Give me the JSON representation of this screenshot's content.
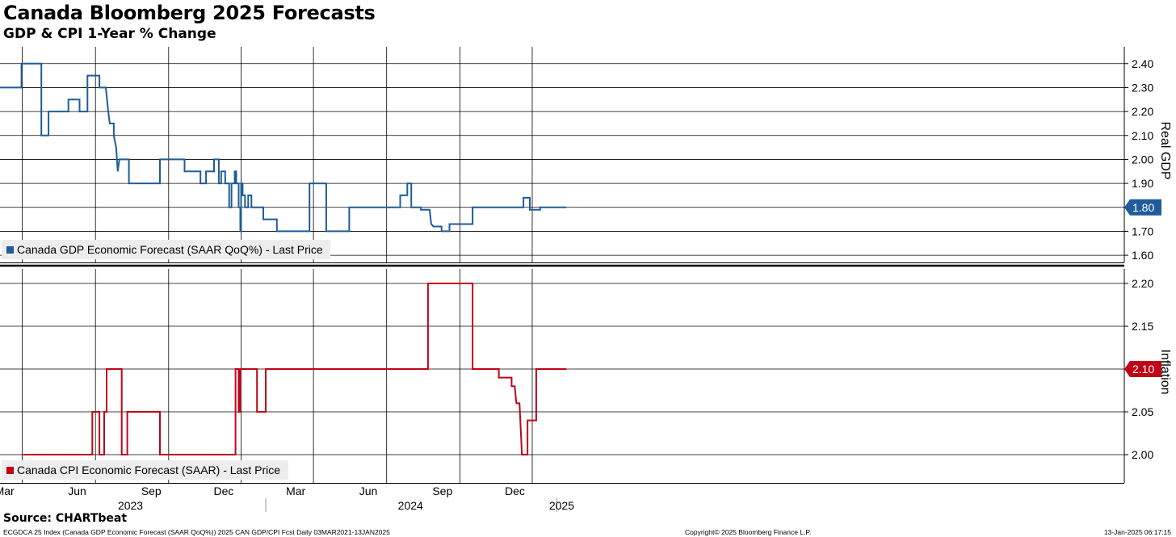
{
  "header": {
    "title": "Canada Bloomberg 2025 Forecasts",
    "subtitle": "GDP & CPI 1-Year % Change"
  },
  "footer": {
    "source": "Source: CHARTbeat",
    "left_note": "ECGDCA 25 Index (Canada GDP Economic Forecast (SAAR QoQ%)) 2025 CAN GDP/CPI Fcst  Daily 03MAR2021-13JAN2025",
    "center_note": "Copyright© 2025 Bloomberg Finance L.P.",
    "right_note": "13-Jan-2025 06:17:15"
  },
  "colors": {
    "gdp": "#1f5c99",
    "cpi": "#c00418",
    "grid": "#000000",
    "legend_bg": "#ededed"
  },
  "x_axis": {
    "months": [
      {
        "label": "Mar",
        "date": "2023-03-01"
      },
      {
        "label": "Jun",
        "date": "2023-06-01"
      },
      {
        "label": "Sep",
        "date": "2023-09-01"
      },
      {
        "label": "Dec",
        "date": "2023-12-01"
      },
      {
        "label": "Mar",
        "date": "2024-03-01"
      },
      {
        "label": "Jun",
        "date": "2024-06-01"
      },
      {
        "label": "Sep",
        "date": "2024-09-01"
      },
      {
        "label": "Dec",
        "date": "2024-12-01"
      }
    ],
    "years": [
      {
        "label": "2023",
        "date": "2023-07-15"
      },
      {
        "label": "2024",
        "date": "2024-07-01"
      },
      {
        "label": "2025",
        "date": "2025-01-07"
      }
    ],
    "year_separators": [
      "2024-01-01",
      "2025-01-01"
    ]
  },
  "chart_data": [
    {
      "type": "line",
      "name": "Canada GDP Economic Forecast (SAAR QoQ%) - Last Price",
      "legend_text": "Canada GDP Economic Forecast (SAAR QoQ%) - Last Price",
      "ylabel": "Real GDP",
      "ylim": [
        1.57,
        2.47
      ],
      "yticks": [
        "1.60",
        "1.70",
        "1.80",
        "1.90",
        "2.00",
        "2.10",
        "2.20",
        "2.30",
        "2.40"
      ],
      "last_value": "1.80",
      "legend": "bottom-left",
      "grid": true,
      "points": [
        [
          "2023-02-01",
          2.3
        ],
        [
          "2023-02-28",
          2.3
        ],
        [
          "2023-02-28",
          2.4
        ],
        [
          "2023-03-25",
          2.4
        ],
        [
          "2023-03-25",
          2.1
        ],
        [
          "2023-04-03",
          2.1
        ],
        [
          "2023-04-03",
          2.2
        ],
        [
          "2023-04-28",
          2.2
        ],
        [
          "2023-04-28",
          2.25
        ],
        [
          "2023-05-12",
          2.25
        ],
        [
          "2023-05-12",
          2.2
        ],
        [
          "2023-05-22",
          2.2
        ],
        [
          "2023-05-22",
          2.35
        ],
        [
          "2023-06-06",
          2.35
        ],
        [
          "2023-06-06",
          2.3
        ],
        [
          "2023-06-14",
          2.3
        ],
        [
          "2023-06-17",
          2.2
        ],
        [
          "2023-06-19",
          2.15
        ],
        [
          "2023-06-24",
          2.15
        ],
        [
          "2023-06-24",
          2.1
        ],
        [
          "2023-06-27",
          2.05
        ],
        [
          "2023-06-29",
          1.95
        ],
        [
          "2023-07-01",
          2.0
        ],
        [
          "2023-07-13",
          2.0
        ],
        [
          "2023-07-13",
          1.9
        ],
        [
          "2023-08-21",
          1.9
        ],
        [
          "2023-08-21",
          2.0
        ],
        [
          "2023-09-21",
          2.0
        ],
        [
          "2023-09-21",
          1.95
        ],
        [
          "2023-10-11",
          1.95
        ],
        [
          "2023-10-11",
          1.9
        ],
        [
          "2023-10-18",
          1.9
        ],
        [
          "2023-10-18",
          1.95
        ],
        [
          "2023-10-28",
          1.95
        ],
        [
          "2023-10-28",
          2.0
        ],
        [
          "2023-11-03",
          2.0
        ],
        [
          "2023-11-03",
          1.9
        ],
        [
          "2023-11-06",
          1.9
        ],
        [
          "2023-11-06",
          1.95
        ],
        [
          "2023-11-11",
          1.95
        ],
        [
          "2023-11-11",
          1.9
        ],
        [
          "2023-11-16",
          1.9
        ],
        [
          "2023-11-16",
          1.8
        ],
        [
          "2023-11-19",
          1.8
        ],
        [
          "2023-11-19",
          1.9
        ],
        [
          "2023-11-23",
          1.9
        ],
        [
          "2023-11-23",
          1.95
        ],
        [
          "2023-11-25",
          1.95
        ],
        [
          "2023-11-25",
          1.9
        ],
        [
          "2023-11-28",
          1.9
        ],
        [
          "2023-11-28",
          1.8
        ],
        [
          "2023-11-30",
          1.8
        ],
        [
          "2023-11-30",
          1.7
        ],
        [
          "2023-12-01",
          1.7
        ],
        [
          "2023-12-01",
          1.9
        ],
        [
          "2023-12-03",
          1.9
        ],
        [
          "2023-12-03",
          1.85
        ],
        [
          "2023-12-06",
          1.85
        ],
        [
          "2023-12-06",
          1.8
        ],
        [
          "2023-12-10",
          1.8
        ],
        [
          "2023-12-10",
          1.85
        ],
        [
          "2023-12-14",
          1.85
        ],
        [
          "2023-12-14",
          1.8
        ],
        [
          "2023-12-29",
          1.8
        ],
        [
          "2023-12-29",
          1.75
        ],
        [
          "2024-01-15",
          1.75
        ],
        [
          "2024-01-15",
          1.7
        ],
        [
          "2024-02-25",
          1.7
        ],
        [
          "2024-02-25",
          1.9
        ],
        [
          "2024-03-17",
          1.9
        ],
        [
          "2024-03-17",
          1.7
        ],
        [
          "2024-04-15",
          1.7
        ],
        [
          "2024-04-15",
          1.8
        ],
        [
          "2024-06-18",
          1.8
        ],
        [
          "2024-06-18",
          1.85
        ],
        [
          "2024-06-27",
          1.85
        ],
        [
          "2024-06-27",
          1.9
        ],
        [
          "2024-07-02",
          1.9
        ],
        [
          "2024-07-02",
          1.8
        ],
        [
          "2024-07-14",
          1.8
        ],
        [
          "2024-07-14",
          1.79
        ],
        [
          "2024-07-25",
          1.79
        ],
        [
          "2024-07-27",
          1.73
        ],
        [
          "2024-07-30",
          1.72
        ],
        [
          "2024-08-09",
          1.72
        ],
        [
          "2024-08-09",
          1.7
        ],
        [
          "2024-08-19",
          1.7
        ],
        [
          "2024-08-19",
          1.73
        ],
        [
          "2024-09-17",
          1.73
        ],
        [
          "2024-09-17",
          1.8
        ],
        [
          "2024-11-20",
          1.8
        ],
        [
          "2024-11-20",
          1.84
        ],
        [
          "2024-11-28",
          1.84
        ],
        [
          "2024-11-28",
          1.79
        ],
        [
          "2024-12-11",
          1.79
        ],
        [
          "2024-12-11",
          1.8
        ],
        [
          "2025-01-13",
          1.8
        ]
      ]
    },
    {
      "type": "line",
      "name": "Canada CPI Economic Forecast (SAAR) - Last Price",
      "legend_text": "Canada CPI Economic Forecast (SAAR) - Last Price",
      "ylabel": "Inflation",
      "ylim": [
        1.967,
        2.217
      ],
      "yticks": [
        "2.00",
        "2.05",
        "2.10",
        "2.15",
        "2.20"
      ],
      "last_value": "2.10",
      "legend": "bottom-left",
      "grid": true,
      "points": [
        [
          "2023-03-02",
          2.0
        ],
        [
          "2023-05-28",
          2.0
        ],
        [
          "2023-05-28",
          2.05
        ],
        [
          "2023-06-06",
          2.05
        ],
        [
          "2023-06-06",
          2.0
        ],
        [
          "2023-06-12",
          2.0
        ],
        [
          "2023-06-12",
          2.05
        ],
        [
          "2023-06-15",
          2.05
        ],
        [
          "2023-06-15",
          2.1
        ],
        [
          "2023-07-04",
          2.1
        ],
        [
          "2023-07-04",
          2.0
        ],
        [
          "2023-07-11",
          2.0
        ],
        [
          "2023-07-11",
          2.05
        ],
        [
          "2023-08-21",
          2.05
        ],
        [
          "2023-08-21",
          2.0
        ],
        [
          "2023-11-24",
          2.0
        ],
        [
          "2023-11-24",
          2.1
        ],
        [
          "2023-11-28",
          2.1
        ],
        [
          "2023-11-28",
          2.05
        ],
        [
          "2023-11-30",
          2.05
        ],
        [
          "2023-11-30",
          2.1
        ],
        [
          "2023-12-21",
          2.1
        ],
        [
          "2023-12-21",
          2.05
        ],
        [
          "2024-01-01",
          2.05
        ],
        [
          "2024-01-01",
          2.1
        ],
        [
          "2024-07-23",
          2.1
        ],
        [
          "2024-07-23",
          2.2
        ],
        [
          "2024-09-17",
          2.2
        ],
        [
          "2024-09-17",
          2.1
        ],
        [
          "2024-10-20",
          2.1
        ],
        [
          "2024-10-20",
          2.09
        ],
        [
          "2024-11-05",
          2.09
        ],
        [
          "2024-11-05",
          2.08
        ],
        [
          "2024-11-09",
          2.08
        ],
        [
          "2024-11-11",
          2.06
        ],
        [
          "2024-11-15",
          2.06
        ],
        [
          "2024-11-18",
          2.0
        ],
        [
          "2024-11-25",
          2.0
        ],
        [
          "2024-11-25",
          2.04
        ],
        [
          "2024-12-06",
          2.04
        ],
        [
          "2024-12-06",
          2.1
        ],
        [
          "2025-01-13",
          2.1
        ]
      ]
    }
  ]
}
